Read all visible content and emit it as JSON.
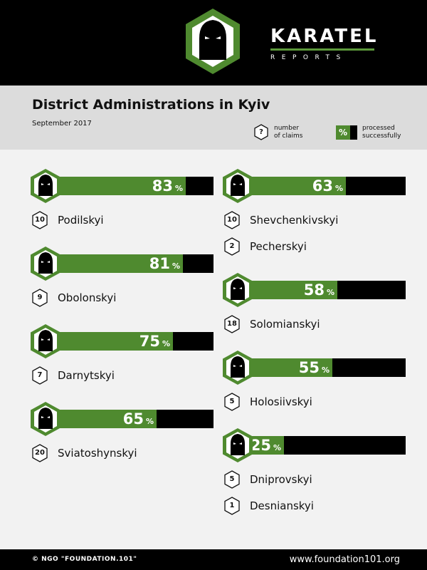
{
  "header": {
    "brand_name": "KARATEL",
    "brand_sub": "REPORTS"
  },
  "title": "District Administrations in Kyiv",
  "date": "September 2017",
  "legend": {
    "claims_marker": "?",
    "claims_line1": "number",
    "claims_line2": "of claims",
    "pct_marker": "%",
    "processed_line1": "processed",
    "processed_line2": "successfully"
  },
  "colors": {
    "fill": "#4f8a2f",
    "track": "#000000",
    "band": "#dcdcdc",
    "background": "#f2f2f2"
  },
  "chart_data": {
    "type": "bar",
    "unit": "%",
    "value_range": [
      0,
      100
    ],
    "groups": [
      {
        "value": 83,
        "districts": [
          {
            "name": "Podilskyi",
            "claims": 10
          }
        ]
      },
      {
        "value": 81,
        "districts": [
          {
            "name": "Obolonskyi",
            "claims": 9
          }
        ]
      },
      {
        "value": 75,
        "districts": [
          {
            "name": "Darnytskyi",
            "claims": 7
          }
        ]
      },
      {
        "value": 65,
        "districts": [
          {
            "name": "Sviatoshynskyi",
            "claims": 20
          }
        ]
      },
      {
        "value": 63,
        "districts": [
          {
            "name": "Shevchenkivskyi",
            "claims": 10
          },
          {
            "name": "Pecherskyi",
            "claims": 2
          }
        ]
      },
      {
        "value": 58,
        "districts": [
          {
            "name": "Solomianskyi",
            "claims": 18
          }
        ]
      },
      {
        "value": 55,
        "districts": [
          {
            "name": "Holosiivskyi",
            "claims": 5
          }
        ]
      },
      {
        "value": 25,
        "districts": [
          {
            "name": "Dniprovskyi",
            "claims": 5
          },
          {
            "name": "Desnianskyi",
            "claims": 1
          }
        ]
      }
    ]
  },
  "footer": {
    "left": "© NGO \"FOUNDATION.101\"",
    "right": "www.foundation101.org"
  }
}
